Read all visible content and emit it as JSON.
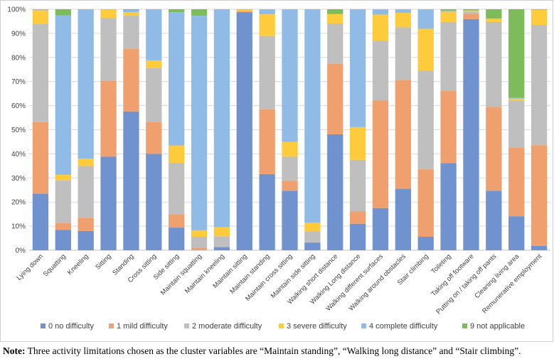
{
  "chart_data": {
    "type": "stacked_bar_percent",
    "title": "",
    "xlabel": "",
    "ylabel": "",
    "ylim": [
      0,
      100
    ],
    "y_ticks": [
      "0%",
      "10%",
      "20%",
      "30%",
      "40%",
      "50%",
      "60%",
      "70%",
      "80%",
      "90%",
      "100%"
    ],
    "gridlines": true,
    "legend_position": "bottom",
    "categories": [
      "Lying down",
      "Squatting",
      "Kneeling",
      "Sitting",
      "Standing",
      "Cross sitting",
      "Side sitting",
      "Maintain squatting",
      "Maintain kneeling",
      "Maintain sitting",
      "Maintain standing",
      "Maintain cross sitting",
      "Maintain side sitting",
      "Walking short distance",
      "Walking Long distance",
      "Walking different surfaces",
      "Walking around obstacles",
      "Stair climbing",
      "Toileting",
      "Taking off footware",
      "Putting on / taking off pants",
      "Cleaning living area",
      "Remunerative employment"
    ],
    "series": [
      {
        "name": "0 no difficulty",
        "color": "#7092cf",
        "values": [
          23.5,
          8.5,
          8.0,
          38.8,
          57.6,
          40.0,
          9.4,
          0.0,
          1.3,
          98.8,
          31.6,
          24.7,
          3.2,
          48.1,
          11.0,
          17.5,
          25.5,
          5.6,
          36.2,
          95.9,
          24.7,
          14.1,
          1.8
        ]
      },
      {
        "name": "1 mild difficulty",
        "color": "#f0a06e",
        "values": [
          29.7,
          2.8,
          5.5,
          31.6,
          26.1,
          13.3,
          5.6,
          1.0,
          0.0,
          0.3,
          26.9,
          4.1,
          0.0,
          29.3,
          5.2,
          44.6,
          45.2,
          28.0,
          30.0,
          2.3,
          34.8,
          28.6,
          41.8
        ]
      },
      {
        "name": "2 moderate difficulty",
        "color": "#bfbfbf",
        "values": [
          40.6,
          17.7,
          21.3,
          26.0,
          13.6,
          22.3,
          21.3,
          4.6,
          4.5,
          0.0,
          30.4,
          10.0,
          4.6,
          16.7,
          21.3,
          24.8,
          21.8,
          41.0,
          28.5,
          0.8,
          35.2,
          19.4,
          49.9
        ]
      },
      {
        "name": "3 severe difficulty",
        "color": "#fecb3d",
        "values": [
          5.8,
          2.3,
          3.2,
          3.4,
          1.5,
          3.2,
          7.2,
          2.6,
          3.8,
          0.7,
          9.0,
          6.2,
          3.7,
          3.9,
          13.6,
          10.9,
          6.0,
          17.3,
          4.3,
          0.5,
          1.4,
          0.8,
          6.2
        ]
      },
      {
        "name": "4 complete difficulty",
        "color": "#8fbbe6",
        "values": [
          0.4,
          66.2,
          62.0,
          0.2,
          0.9,
          21.2,
          55.3,
          89.1,
          90.4,
          0.1,
          2.1,
          55.0,
          88.5,
          0.0,
          48.9,
          2.2,
          1.5,
          8.1,
          0.5,
          0.0,
          0.0,
          0.3,
          0.3
        ]
      },
      {
        "name": "9 not applicable",
        "color": "#7ebb5a",
        "values": [
          0.0,
          2.5,
          0.0,
          0.0,
          0.3,
          0.0,
          1.2,
          2.7,
          0.0,
          0.1,
          0.0,
          0.0,
          0.0,
          2.0,
          0.0,
          0.0,
          0.0,
          0.0,
          0.5,
          0.5,
          3.9,
          36.8,
          0.0
        ]
      }
    ]
  },
  "note": {
    "label": "Note:",
    "text": " Three activity limitations chosen as the cluster variables are “Maintain standing”, “Walking long distance” and “Stair climbing”."
  }
}
